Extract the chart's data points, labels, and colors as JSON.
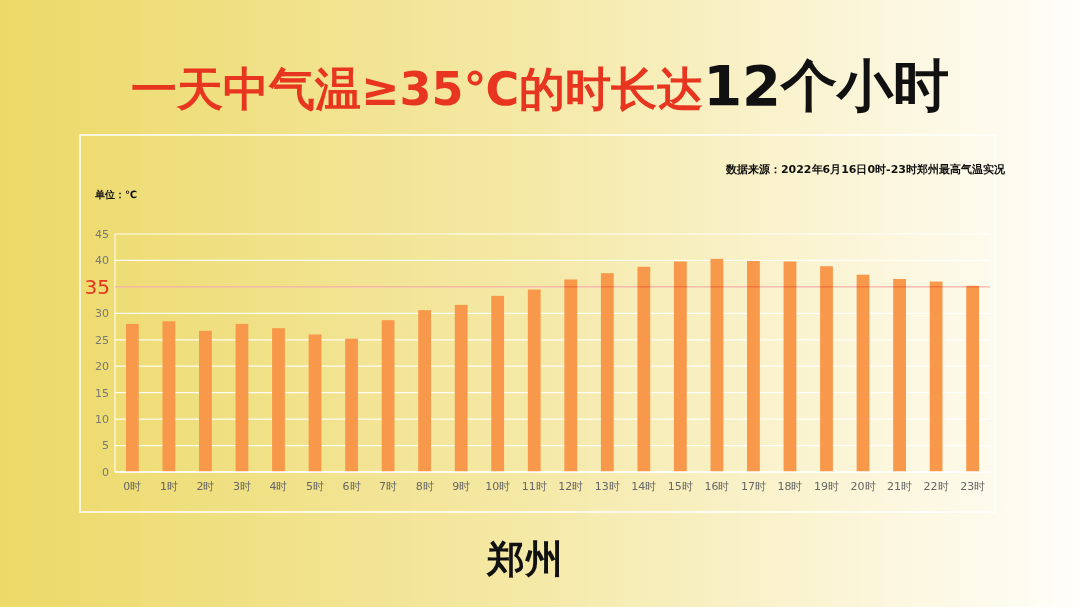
{
  "chart_data": {
    "type": "bar",
    "title": "一天中气温≥35℃的时长达12个小时",
    "subtitle": "郑州",
    "ylabel": "单位：℃",
    "annotations": [
      "数据来源：2022年6月16日0时-23时郑州最高气温实况"
    ],
    "categories": [
      "0时",
      "1时",
      "2时",
      "3时",
      "4时",
      "5时",
      "6时",
      "7时",
      "8时",
      "9时",
      "10时",
      "11时",
      "12时",
      "13时",
      "14时",
      "15时",
      "16时",
      "17时",
      "18时",
      "19时",
      "20时",
      "21时",
      "22时",
      "23时"
    ],
    "values": [
      28.0,
      28.5,
      26.7,
      28.0,
      27.2,
      26.0,
      25.2,
      28.7,
      30.6,
      31.6,
      33.3,
      34.5,
      36.4,
      37.6,
      38.8,
      39.8,
      40.3,
      39.9,
      39.8,
      38.9,
      37.3,
      36.5,
      36.0,
      35.2
    ],
    "color": "#f7984a",
    "ylim": [
      0,
      45
    ],
    "yticks": [
      0,
      5,
      10,
      15,
      20,
      25,
      30,
      {
        "value": 35,
        "label": null
      },
      40,
      45
    ],
    "grid": "y",
    "ref_lines": [
      {
        "axis": "y",
        "value": 35,
        "label": "35",
        "color": "#e8351f"
      }
    ]
  }
}
